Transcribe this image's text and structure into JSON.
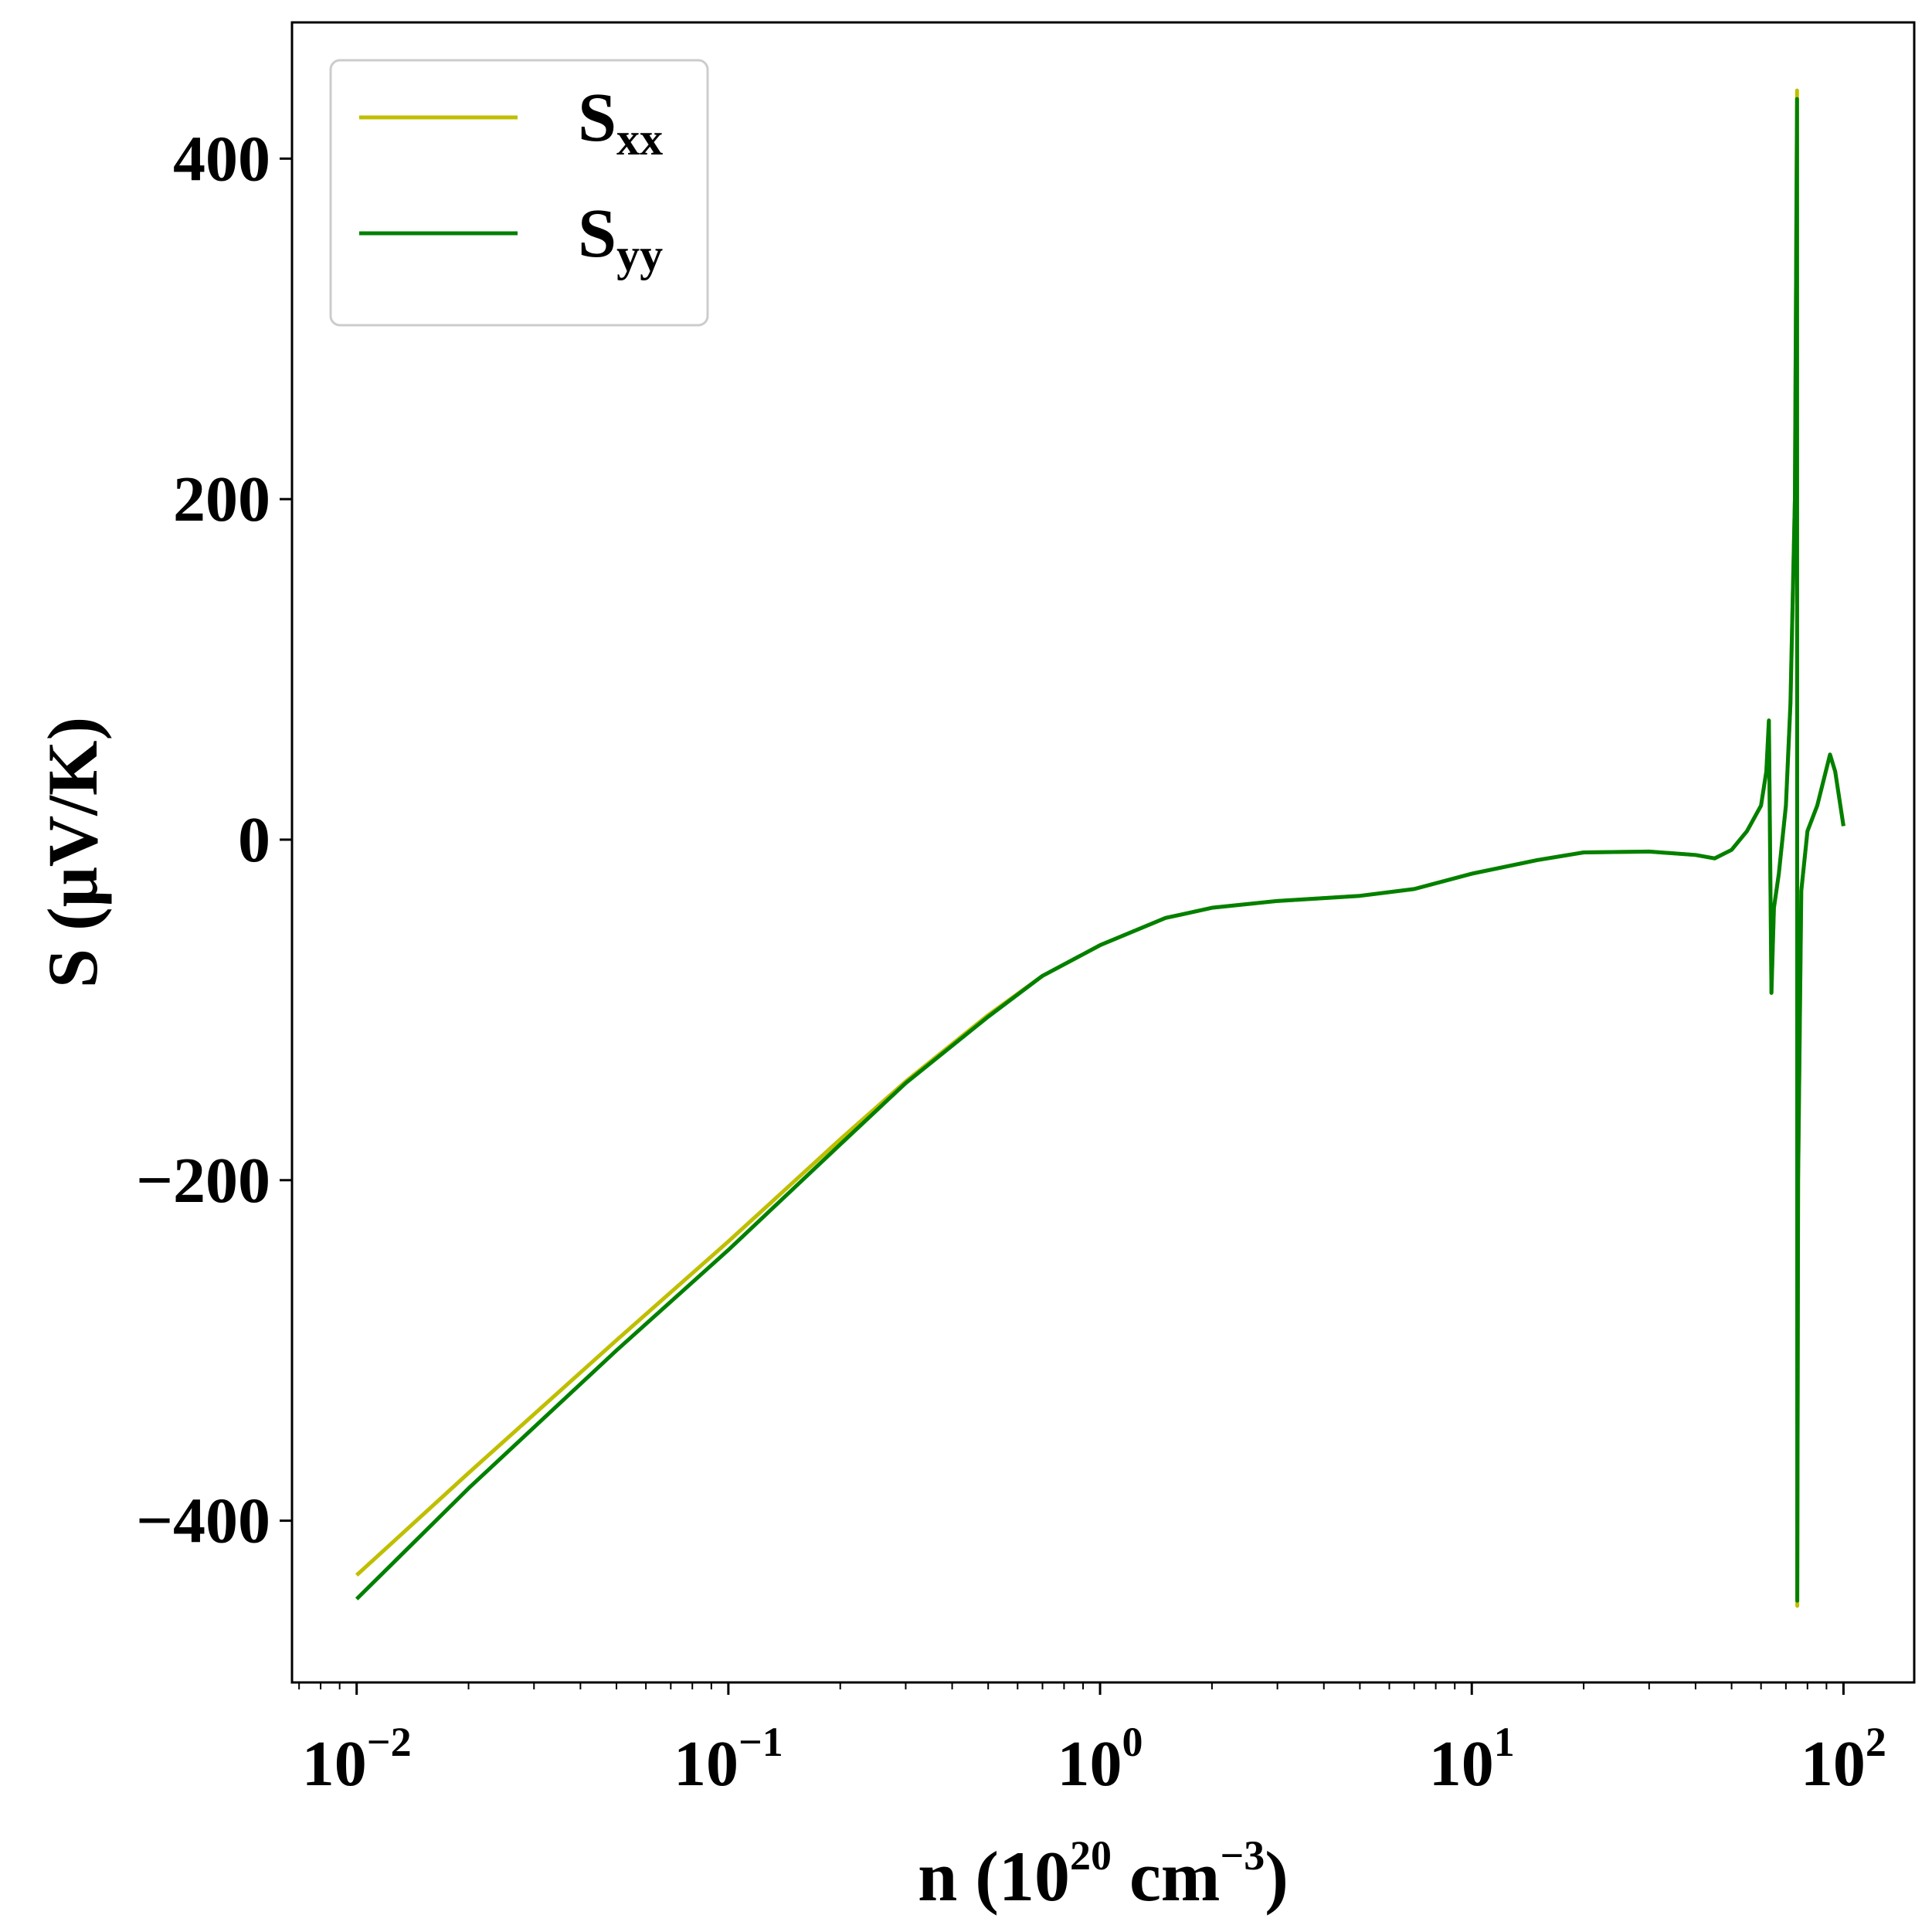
{
  "chart_data": {
    "type": "line",
    "xlabel": "n (10^20 cm^-3)",
    "xlabel_parts": {
      "pre": "n (10",
      "exp1": "20",
      "mid": " cm",
      "exp2": "−3",
      "post": ")"
    },
    "ylabel": "S (μV/K)",
    "x_scale": "log",
    "xlim": [
      0.0067,
      155
    ],
    "ylim": [
      -495,
      480
    ],
    "grid": false,
    "legend_position": "top-left",
    "x_ticks": [
      {
        "value": 0.01,
        "base": "10",
        "exp": "−2"
      },
      {
        "value": 0.1,
        "base": "10",
        "exp": "−1"
      },
      {
        "value": 1,
        "base": "10",
        "exp": "0"
      },
      {
        "value": 10,
        "base": "10",
        "exp": "1"
      },
      {
        "value": 100,
        "base": "10",
        "exp": "2"
      }
    ],
    "y_ticks": [
      {
        "value": 400,
        "label": "400"
      },
      {
        "value": 200,
        "label": "200"
      },
      {
        "value": 0,
        "label": "0"
      },
      {
        "value": -200,
        "label": "−200"
      },
      {
        "value": -400,
        "label": "−400"
      }
    ],
    "series": [
      {
        "name": "Sxx",
        "legend_base": "S",
        "legend_sub": "xx",
        "color": "#bfbf00",
        "points": [
          [
            0.01,
            -432
          ],
          [
            0.02,
            -372
          ],
          [
            0.05,
            -294
          ],
          [
            0.1,
            -236
          ],
          [
            0.2,
            -176
          ],
          [
            0.3,
            -142
          ],
          [
            0.5,
            -103
          ],
          [
            0.7,
            -80
          ],
          [
            1.0,
            -62
          ],
          [
            1.5,
            -46
          ],
          [
            2,
            -40
          ],
          [
            3,
            -36
          ],
          [
            5,
            -33
          ],
          [
            7,
            -29
          ],
          [
            10,
            -20
          ],
          [
            15,
            -12
          ],
          [
            20,
            -7.5
          ],
          [
            30,
            -7
          ],
          [
            40,
            -9
          ],
          [
            45,
            -11
          ],
          [
            50,
            -6
          ],
          [
            55,
            5
          ],
          [
            60,
            20
          ],
          [
            62,
            40
          ],
          [
            63,
            70
          ],
          [
            64,
            -90
          ],
          [
            65,
            -40
          ],
          [
            67,
            -20
          ],
          [
            70,
            20
          ],
          [
            72,
            80
          ],
          [
            74,
            200
          ],
          [
            75,
            440
          ],
          [
            75.1,
            -450
          ],
          [
            75.5,
            -200
          ],
          [
            77,
            -30
          ],
          [
            80,
            5
          ],
          [
            85,
            20
          ],
          [
            92,
            50
          ],
          [
            95,
            40
          ],
          [
            100,
            8
          ]
        ]
      },
      {
        "name": "Syy",
        "legend_base": "S",
        "legend_sub": "yy",
        "color": "#008000",
        "points": [
          [
            0.01,
            -446
          ],
          [
            0.02,
            -381
          ],
          [
            0.05,
            -300
          ],
          [
            0.1,
            -241
          ],
          [
            0.2,
            -179
          ],
          [
            0.3,
            -143
          ],
          [
            0.5,
            -104
          ],
          [
            0.7,
            -80
          ],
          [
            1.0,
            -62
          ],
          [
            1.5,
            -46
          ],
          [
            2,
            -40
          ],
          [
            3,
            -36
          ],
          [
            5,
            -33
          ],
          [
            7,
            -29
          ],
          [
            10,
            -20
          ],
          [
            15,
            -12
          ],
          [
            20,
            -7.5
          ],
          [
            30,
            -7
          ],
          [
            40,
            -9
          ],
          [
            45,
            -11
          ],
          [
            50,
            -6
          ],
          [
            55,
            5
          ],
          [
            60,
            20
          ],
          [
            62,
            40
          ],
          [
            63,
            70
          ],
          [
            64,
            -90
          ],
          [
            65,
            -40
          ],
          [
            67,
            -20
          ],
          [
            70,
            20
          ],
          [
            72,
            80
          ],
          [
            74,
            200
          ],
          [
            75,
            435
          ],
          [
            75.1,
            -447
          ],
          [
            75.5,
            -200
          ],
          [
            77,
            -30
          ],
          [
            80,
            5
          ],
          [
            85,
            20
          ],
          [
            92,
            50
          ],
          [
            95,
            40
          ],
          [
            100,
            8
          ]
        ]
      }
    ]
  }
}
